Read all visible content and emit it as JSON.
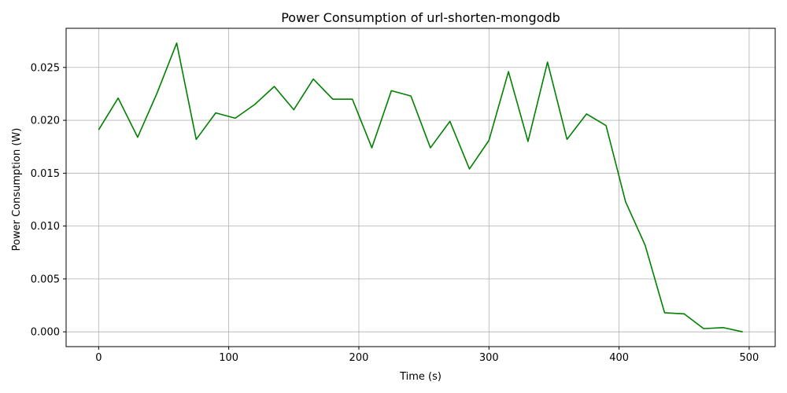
{
  "chart_data": {
    "type": "line",
    "title": "Power Consumption of url-shorten-mongodb",
    "xlabel": "Time (s)",
    "ylabel": "Power Consumption (W)",
    "xlim": [
      -25,
      520
    ],
    "ylim": [
      -0.0014,
      0.0287
    ],
    "grid": true,
    "xticks": [
      0,
      100,
      200,
      300,
      400,
      500
    ],
    "xtick_labels": [
      "0",
      "100",
      "200",
      "300",
      "400",
      "500"
    ],
    "yticks": [
      0.0,
      0.005,
      0.01,
      0.015,
      0.02,
      0.025
    ],
    "ytick_labels": [
      "0.000",
      "0.005",
      "0.010",
      "0.015",
      "0.020",
      "0.025"
    ],
    "series": [
      {
        "color": "#008000",
        "x": [
          0,
          15,
          30,
          45,
          60,
          75,
          90,
          105,
          120,
          135,
          150,
          165,
          180,
          195,
          210,
          225,
          240,
          255,
          270,
          285,
          300,
          315,
          330,
          345,
          360,
          375,
          390,
          405,
          420,
          435,
          450,
          465,
          480,
          495
        ],
        "y": [
          0.0191,
          0.0221,
          0.0184,
          0.0226,
          0.0273,
          0.0182,
          0.0207,
          0.0202,
          0.0215,
          0.0232,
          0.021,
          0.0239,
          0.022,
          0.022,
          0.0174,
          0.0228,
          0.0223,
          0.0174,
          0.0199,
          0.0154,
          0.0181,
          0.0246,
          0.018,
          0.0255,
          0.0182,
          0.0206,
          0.0195,
          0.0123,
          0.0082,
          0.0018,
          0.0017,
          0.0003,
          0.0004,
          0.0
        ]
      }
    ]
  }
}
